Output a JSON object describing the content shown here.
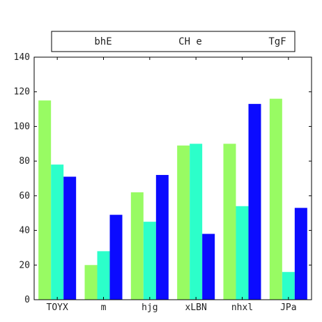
{
  "chart_data": {
    "type": "bar",
    "title": "",
    "xlabel": "",
    "ylabel": "",
    "categories": [
      "TOYX",
      "m",
      "hjg",
      "xLBN",
      "nhxl",
      "JPa"
    ],
    "ylim": [
      0,
      140
    ],
    "yticks": [
      0,
      20,
      40,
      60,
      80,
      100,
      120,
      140
    ],
    "grid": false,
    "legend_position": "top",
    "series": [
      {
        "name": "bhE",
        "color": "#98fb63",
        "values": [
          115,
          20,
          62,
          89,
          90,
          116
        ]
      },
      {
        "name": "CH e",
        "color": "#2cffca",
        "values": [
          78,
          28,
          45,
          90,
          54,
          16
        ]
      },
      {
        "name": "TgF",
        "color": "#0b0bff",
        "values": [
          71,
          49,
          72,
          38,
          113,
          53
        ]
      }
    ]
  }
}
